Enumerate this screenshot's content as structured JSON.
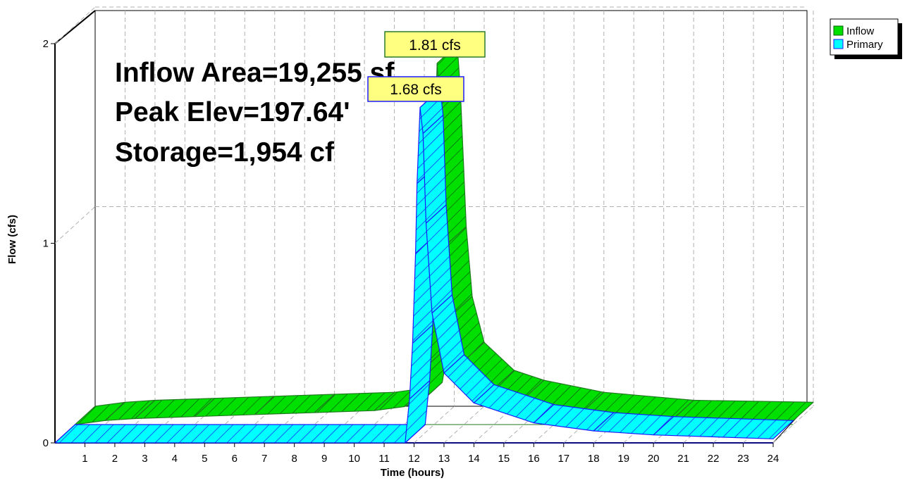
{
  "chart_data": {
    "type": "area",
    "xlabel": "Time  (hours)",
    "ylabel": "Flow  (cfs)",
    "x_ticks": [
      "1",
      "2",
      "3",
      "4",
      "5",
      "6",
      "7",
      "8",
      "9",
      "10",
      "11",
      "12",
      "13",
      "14",
      "15",
      "16",
      "17",
      "18",
      "19",
      "20",
      "21",
      "22",
      "23",
      "24"
    ],
    "y_ticks": [
      "0",
      "1",
      "2"
    ],
    "xlim": [
      0,
      24
    ],
    "ylim": [
      0,
      2
    ],
    "grid": true,
    "legend_position": "top-right",
    "annotations": [
      "Inflow Area=19,255 sf",
      "Peak Elev=197.64'",
      "Storage=1,954 cf"
    ],
    "series": [
      {
        "name": "Inflow",
        "color": "#00e000",
        "peak_label": "1.81 cfs",
        "x": [
          0,
          1,
          2,
          4,
          6,
          8,
          10,
          11,
          11.6,
          11.8,
          11.9,
          12.0,
          12.1,
          12.2,
          12.4,
          12.6,
          13.0,
          14,
          15,
          17,
          20,
          24
        ],
        "y": [
          0,
          0.02,
          0.03,
          0.04,
          0.05,
          0.06,
          0.07,
          0.09,
          0.12,
          0.3,
          0.8,
          1.3,
          1.81,
          1.6,
          0.9,
          0.55,
          0.32,
          0.18,
          0.13,
          0.07,
          0.03,
          0.02
        ]
      },
      {
        "name": "Primary",
        "color": "#00ffff",
        "peak_label": "1.68 cfs",
        "x": [
          0,
          11.7,
          11.85,
          11.95,
          12.05,
          12.1,
          12.2,
          12.3,
          12.4,
          12.6,
          13.0,
          14,
          16,
          18,
          20,
          24
        ],
        "y": [
          0,
          0,
          0.22,
          0.5,
          0.95,
          1.3,
          1.68,
          1.55,
          1.1,
          0.65,
          0.35,
          0.2,
          0.1,
          0.06,
          0.04,
          0.02
        ]
      }
    ]
  }
}
